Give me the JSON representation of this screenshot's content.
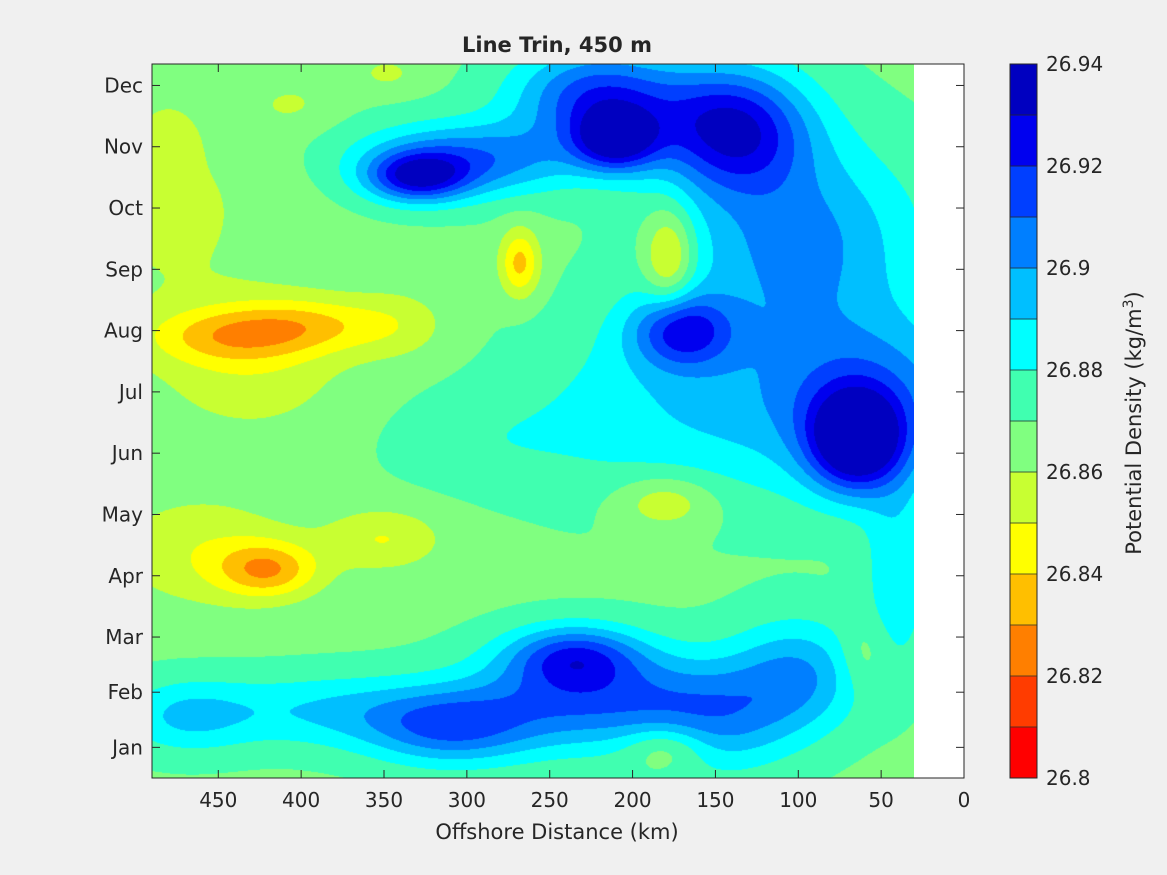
{
  "chart_data": {
    "type": "heatmap",
    "subtype": "filled-contour",
    "title": "Line Trin, 450 m",
    "xlabel": "Offshore Distance (km)",
    "x_reversed": true,
    "xlim": [
      0,
      490
    ],
    "x_ticks": [
      450,
      400,
      350,
      300,
      250,
      200,
      150,
      100,
      50,
      0
    ],
    "ylim": [
      0.5,
      12.15
    ],
    "y_ticks": [
      {
        "value": 1,
        "label": "Jan"
      },
      {
        "value": 2,
        "label": "Feb"
      },
      {
        "value": 3,
        "label": "Mar"
      },
      {
        "value": 4,
        "label": "Apr"
      },
      {
        "value": 5,
        "label": "May"
      },
      {
        "value": 6,
        "label": "Jun"
      },
      {
        "value": 7,
        "label": "Jul"
      },
      {
        "value": 8,
        "label": "Aug"
      },
      {
        "value": 9,
        "label": "Sep"
      },
      {
        "value": 10,
        "label": "Oct"
      },
      {
        "value": 11,
        "label": "Nov"
      },
      {
        "value": 12,
        "label": "Dec"
      }
    ],
    "y_tick_positions": [
      1,
      1.9,
      2.8,
      3.8,
      4.8,
      5.8,
      6.8,
      7.8,
      8.8,
      9.8,
      10.8,
      11.8
    ],
    "data_x_range": [
      30,
      490
    ],
    "colorbar": {
      "label_prefix": "Potential Density (kg/m",
      "label_superscript": "3",
      "label_suffix": ")",
      "min": 26.8,
      "max": 26.94,
      "tick_values": [
        26.8,
        26.82,
        26.84,
        26.86,
        26.88,
        26.9,
        26.92,
        26.94
      ],
      "tick_labels": [
        "26.8",
        "26.82",
        "26.84",
        "26.86",
        "26.88",
        "26.9",
        "26.92",
        "26.94"
      ],
      "levels": [
        26.8,
        26.81,
        26.82,
        26.83,
        26.84,
        26.85,
        26.86,
        26.87,
        26.88,
        26.89,
        26.9,
        26.91,
        26.92,
        26.93,
        26.94
      ],
      "colors": [
        "#ff0000",
        "#ff3c00",
        "#ff7f00",
        "#ffbf00",
        "#ffff00",
        "#c8ff32",
        "#80ff80",
        "#40ffb0",
        "#00ffff",
        "#00bfff",
        "#007fff",
        "#003fff",
        "#0000ef",
        "#0000c0"
      ]
    },
    "background_density": 26.868,
    "features": [
      {
        "x": 445,
        "y": 7.7,
        "sx": 50,
        "sy": 0.45,
        "a": -0.022
      },
      {
        "x": 395,
        "y": 7.9,
        "sx": 50,
        "sy": 0.45,
        "a": -0.022
      },
      {
        "x": 430,
        "y": 7.2,
        "sx": 60,
        "sy": 1.1,
        "a": -0.014
      },
      {
        "x": 340,
        "y": 7.9,
        "sx": 30,
        "sy": 0.6,
        "a": -0.01
      },
      {
        "x": 420,
        "y": 3.9,
        "sx": 30,
        "sy": 0.45,
        "a": -0.033
      },
      {
        "x": 350,
        "y": 4.4,
        "sx": 35,
        "sy": 0.5,
        "a": -0.018
      },
      {
        "x": 460,
        "y": 4.2,
        "sx": 55,
        "sy": 0.9,
        "a": -0.016
      },
      {
        "x": 268,
        "y": 8.9,
        "sx": 12,
        "sy": 0.55,
        "a": -0.032
      },
      {
        "x": 180,
        "y": 5.0,
        "sx": 30,
        "sy": 0.45,
        "a": -0.02
      },
      {
        "x": 348,
        "y": 12.0,
        "sx": 20,
        "sy": 0.3,
        "a": -0.01
      },
      {
        "x": 480,
        "y": 10.9,
        "sx": 15,
        "sy": 0.5,
        "a": -0.01
      },
      {
        "x": 405,
        "y": 11.5,
        "sx": 25,
        "sy": 0.4,
        "a": -0.008
      },
      {
        "x": 480,
        "y": 9.8,
        "sx": 70,
        "sy": 1.8,
        "a": -0.01
      },
      {
        "x": 140,
        "y": 11.1,
        "sx": 45,
        "sy": 1.0,
        "a": 0.06
      },
      {
        "x": 220,
        "y": 11.6,
        "sx": 50,
        "sy": 0.8,
        "a": 0.05
      },
      {
        "x": 210,
        "y": 10.9,
        "sx": 25,
        "sy": 0.5,
        "a": 0.055
      },
      {
        "x": 330,
        "y": 10.3,
        "sx": 30,
        "sy": 0.4,
        "a": 0.05
      },
      {
        "x": 300,
        "y": 10.6,
        "sx": 65,
        "sy": 0.6,
        "a": 0.04
      },
      {
        "x": 100,
        "y": 9.3,
        "sx": 70,
        "sy": 1.6,
        "a": 0.035
      },
      {
        "x": 65,
        "y": 6.0,
        "sx": 28,
        "sy": 0.8,
        "a": 0.07
      },
      {
        "x": 55,
        "y": 6.7,
        "sx": 70,
        "sy": 1.4,
        "a": 0.035
      },
      {
        "x": 170,
        "y": 7.8,
        "sx": 30,
        "sy": 0.6,
        "a": 0.045
      },
      {
        "x": 170,
        "y": 6.6,
        "sx": 90,
        "sy": 1.6,
        "a": 0.02
      },
      {
        "x": 178,
        "y": 9.0,
        "sx": 15,
        "sy": 0.8,
        "a": -0.03
      },
      {
        "x": 230,
        "y": 1.8,
        "sx": 70,
        "sy": 0.8,
        "a": 0.04
      },
      {
        "x": 235,
        "y": 2.5,
        "sx": 40,
        "sy": 0.5,
        "a": 0.04
      },
      {
        "x": 310,
        "y": 1.3,
        "sx": 50,
        "sy": 0.6,
        "a": 0.035
      },
      {
        "x": 150,
        "y": 1.5,
        "sx": 50,
        "sy": 0.9,
        "a": 0.03
      },
      {
        "x": 180,
        "y": 1.0,
        "sx": 25,
        "sy": 0.4,
        "a": -0.02
      },
      {
        "x": 100,
        "y": 2.2,
        "sx": 40,
        "sy": 0.9,
        "a": 0.03
      },
      {
        "x": 380,
        "y": 1.6,
        "sx": 80,
        "sy": 0.6,
        "a": 0.022
      },
      {
        "x": 470,
        "y": 1.5,
        "sx": 40,
        "sy": 0.6,
        "a": 0.02
      },
      {
        "x": 40,
        "y": 3.8,
        "sx": 20,
        "sy": 1.5,
        "a": 0.02
      },
      {
        "x": 60,
        "y": 2.5,
        "sx": 15,
        "sy": 0.6,
        "a": -0.012
      },
      {
        "x": 290,
        "y": 6.0,
        "sx": 60,
        "sy": 0.8,
        "a": 0.008
      }
    ]
  }
}
